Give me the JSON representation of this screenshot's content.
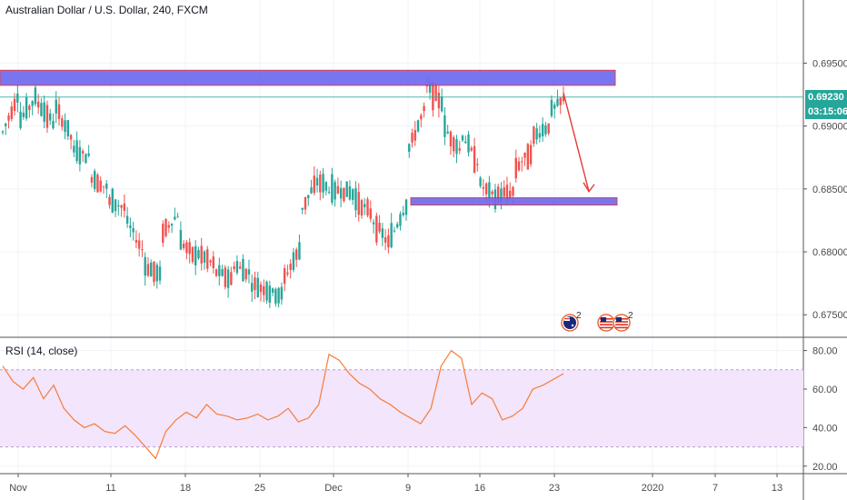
{
  "header": {
    "symbol_title": "Australian Dollar / U.S. Dollar, 240, FXCM"
  },
  "price_axis": {
    "ticks": [
      "0.69500",
      "0.69000",
      "0.68500",
      "0.68000",
      "0.67500"
    ],
    "last_price": "0.69230",
    "countdown": "03:15:06"
  },
  "rsi": {
    "title": "RSI (14, close)",
    "ticks": [
      "80.00",
      "60.00",
      "40.00",
      "20.00"
    ]
  },
  "time_axis": {
    "labels": [
      "Nov",
      "11",
      "18",
      "25",
      "Dec",
      "9",
      "16",
      "23",
      "2020",
      "7",
      "13"
    ]
  },
  "events": {
    "australia_count": "2",
    "us_count": "2"
  },
  "colors": {
    "up": "#26a69a",
    "down": "#ef5350",
    "zone_fill": "#6e6af0",
    "zone_border": "#e0313f",
    "rsi_line": "#f57c3a",
    "rsi_band": "#f3e5fb",
    "last_price_bg": "#26a69a",
    "arrow": "#e53935"
  },
  "chart_data": {
    "type": "candlestick",
    "symbol": "AUDUSD",
    "timeframe": "240",
    "y_range": [
      0.6735,
      0.6998
    ],
    "y_ticks": [
      0.695,
      0.69,
      0.685,
      0.68,
      0.675
    ],
    "close_path": [
      [
        0.6895,
        0.693
      ],
      [
        0.6905,
        0.6925
      ],
      [
        0.6918,
        0.69
      ],
      [
        0.6915,
        0.6888
      ],
      [
        0.688,
        0.6875
      ],
      [
        0.686,
        0.685
      ],
      [
        0.684,
        0.6835
      ],
      [
        0.6825,
        0.68
      ],
      [
        0.679,
        0.678
      ],
      [
        0.6815,
        0.683
      ],
      [
        0.681,
        0.6795
      ],
      [
        0.68,
        0.679
      ],
      [
        0.6785,
        0.6778
      ],
      [
        0.679,
        0.6783
      ],
      [
        0.6775,
        0.677
      ],
      [
        0.6768,
        0.6765
      ],
      [
        0.678,
        0.6805
      ],
      [
        0.6835,
        0.686
      ],
      [
        0.6855,
        0.6845
      ],
      [
        0.685,
        0.6845
      ],
      [
        0.6842,
        0.683
      ],
      [
        0.6825,
        0.6805
      ],
      [
        0.681,
        0.684
      ],
      [
        0.688,
        0.6915
      ],
      [
        0.6932,
        0.6918
      ],
      [
        0.69,
        0.688
      ],
      [
        0.6895,
        0.687
      ],
      [
        0.6855,
        0.6842
      ],
      [
        0.6845,
        0.6848
      ],
      [
        0.6865,
        0.688
      ],
      [
        0.689,
        0.69
      ],
      [
        0.691,
        0.6923
      ]
    ],
    "resistance_zone": [
      0.6928,
      0.694
    ],
    "support_zone": [
      0.6838,
      0.6843
    ],
    "projection_arrow": {
      "from": 0.6925,
      "to": 0.6845
    },
    "rsi_y_range": [
      18,
      85
    ],
    "rsi_band": [
      30,
      70
    ],
    "rsi_values": [
      72,
      64,
      60,
      66,
      55,
      62,
      50,
      44,
      40,
      42,
      38,
      37,
      41,
      36,
      30,
      24,
      38,
      44,
      48,
      45,
      52,
      47,
      46,
      44,
      45,
      47,
      44,
      46,
      50,
      43,
      45,
      52,
      78,
      75,
      68,
      63,
      60,
      55,
      52,
      48,
      45,
      42,
      50,
      72,
      80,
      76,
      52,
      58,
      55,
      44,
      46,
      50,
      60,
      62,
      65,
      68
    ]
  }
}
